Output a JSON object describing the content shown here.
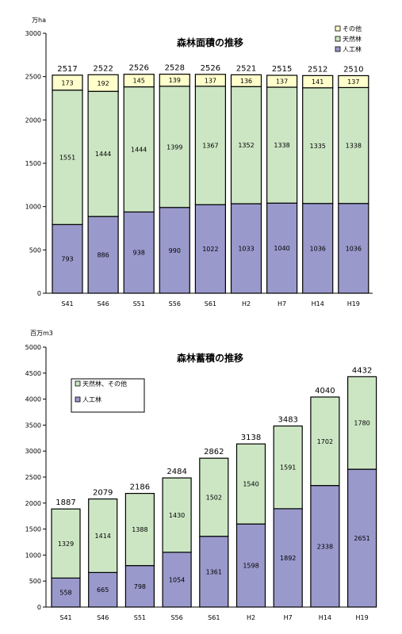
{
  "chart_data": [
    {
      "type": "bar",
      "stacked": true,
      "title": "森林面積の推移",
      "ylabel": "万ha",
      "ylim": [
        0,
        3000
      ],
      "yticks": [
        0,
        500,
        1000,
        1500,
        2000,
        2500,
        3000
      ],
      "grid": false,
      "legend_position": "top-right",
      "categories": [
        "S41",
        "S46",
        "S51",
        "S56",
        "S61",
        "H2",
        "H7",
        "H14",
        "H19"
      ],
      "series": [
        {
          "name": "人工林",
          "color": "#9999cc",
          "values": [
            793,
            886,
            938,
            990,
            1022,
            1033,
            1040,
            1036,
            1036
          ]
        },
        {
          "name": "天然林",
          "color": "#cce6c4",
          "values": [
            1551,
            1444,
            1444,
            1399,
            1367,
            1352,
            1338,
            1335,
            1338
          ]
        },
        {
          "name": "その他",
          "color": "#ffffcc",
          "values": [
            173,
            192,
            145,
            139,
            137,
            136,
            137,
            141,
            137
          ]
        }
      ],
      "totals": [
        2517,
        2522,
        2526,
        2528,
        2526,
        2521,
        2515,
        2512,
        2510
      ],
      "legend_order": [
        "その他",
        "天然林",
        "人工林"
      ]
    },
    {
      "type": "bar",
      "stacked": true,
      "title": "森林蓄積の推移",
      "ylabel": "百万m3",
      "ylim": [
        0,
        5000
      ],
      "yticks": [
        0,
        500,
        1000,
        1500,
        2000,
        2500,
        3000,
        3500,
        4000,
        4500,
        5000
      ],
      "grid": false,
      "legend_position": "top-left",
      "categories": [
        "S41",
        "S46",
        "S51",
        "S56",
        "S61",
        "H2",
        "H7",
        "H14",
        "H19"
      ],
      "series": [
        {
          "name": "人工林",
          "color": "#9999cc",
          "values": [
            558,
            665,
            798,
            1054,
            1361,
            1598,
            1892,
            2338,
            2651
          ]
        },
        {
          "name": "天然林、その他",
          "color": "#cce6c4",
          "values": [
            1329,
            1414,
            1388,
            1430,
            1502,
            1540,
            1591,
            1702,
            1780
          ]
        }
      ],
      "totals": [
        1887,
        2079,
        2186,
        2484,
        2862,
        3138,
        3483,
        4040,
        4432
      ],
      "legend_order": [
        "天然林、その他",
        "人工林"
      ]
    }
  ]
}
